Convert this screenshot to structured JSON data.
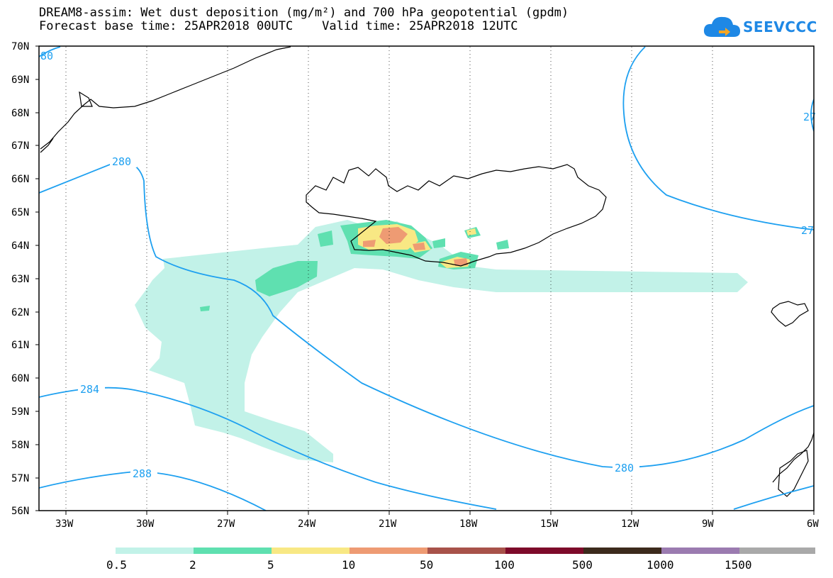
{
  "title": {
    "line1": "DREAM8-assim: Wet dust deposition (mg/m²) and 700 hPa geopotential (gpdm)",
    "line2": "Forecast base time: 25APR2018 00UTC    Valid time: 25APR2018 12UTC"
  },
  "logo": {
    "text": "SEEVCCC",
    "icon": "cloud-icon"
  },
  "axes": {
    "lat_labels": [
      "70N",
      "69N",
      "68N",
      "67N",
      "66N",
      "65N",
      "64N",
      "63N",
      "62N",
      "61N",
      "60N",
      "59N",
      "58N",
      "57N",
      "56N"
    ],
    "lon_labels": [
      "33W",
      "30W",
      "27W",
      "24W",
      "21W",
      "18W",
      "15W",
      "12W",
      "9W",
      "6W"
    ],
    "lat_range": [
      56,
      70
    ],
    "lon_range": [
      -34.5,
      -6
    ]
  },
  "contours": {
    "color": "#1ea0f0",
    "labels": [
      "280",
      "280",
      "284",
      "288",
      "280",
      "27",
      "27",
      "28",
      "80"
    ]
  },
  "legend": {
    "labels": [
      "0.5",
      "2",
      "5",
      "10",
      "50",
      "100",
      "500",
      "1000",
      "1500"
    ],
    "colors": [
      "#c2f2e8",
      "#5fe0b0",
      "#f8e884",
      "#ee9b73",
      "#a8524a",
      "#7d0a2a",
      "#3c2a1c",
      "#9b7bb0",
      "#a9a9a9"
    ]
  }
}
